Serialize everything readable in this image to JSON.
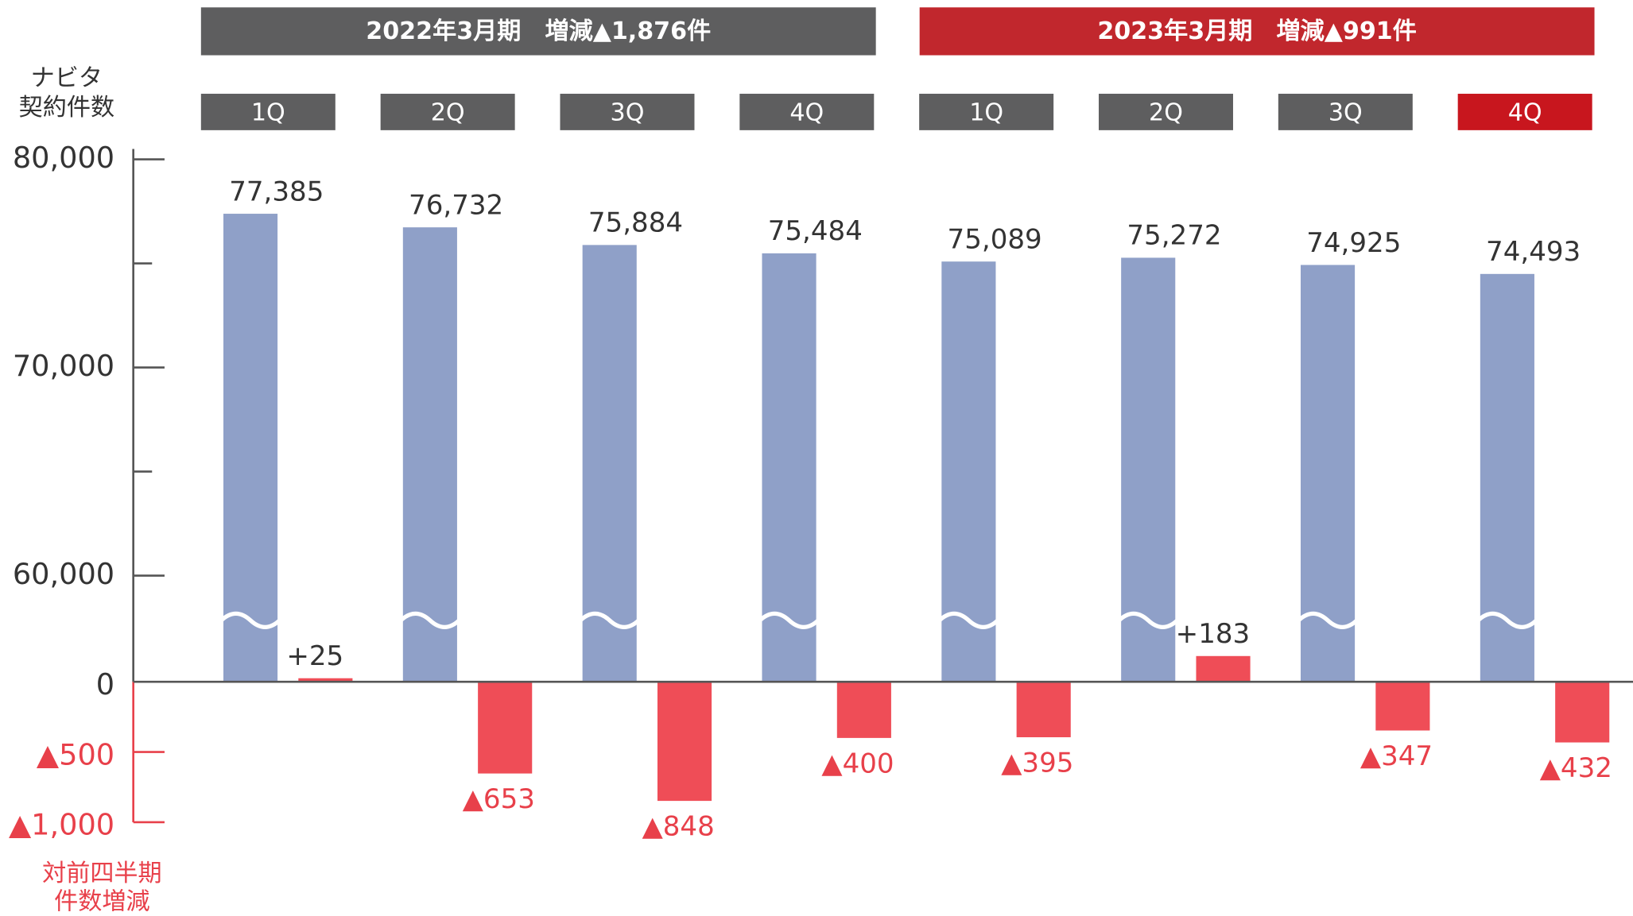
{
  "chart_data": {
    "type": "bar",
    "periods": [
      {
        "label": "2022年3月期　増減▲1,876件",
        "color": "#5e5e5f"
      },
      {
        "label": "2023年3月期　増減▲991件",
        "color": "#c1272d"
      }
    ],
    "categories": [
      "1Q",
      "2Q",
      "3Q",
      "4Q",
      "1Q",
      "2Q",
      "3Q",
      "4Q"
    ],
    "category_colors": [
      "#5e5e5f",
      "#5e5e5f",
      "#5e5e5f",
      "#5e5e5f",
      "#5e5e5f",
      "#5e5e5f",
      "#5e5e5f",
      "#c8161e"
    ],
    "ylabel": [
      "ナビタ",
      "契約件数"
    ],
    "y2label": [
      "対前四半期",
      "件数増減"
    ],
    "series": [
      {
        "color": "#8fa0c8",
        "values": [
          77385,
          76732,
          75884,
          75484,
          75089,
          75272,
          74925,
          74493
        ],
        "value_labels": [
          "77,385",
          "76,732",
          "75,884",
          "75,484",
          "75,089",
          "75,272",
          "74,925",
          "74,493"
        ]
      },
      {
        "color": "#ef4d57",
        "axis": "y2",
        "values": [
          25,
          -653,
          -848,
          -400,
          -395,
          183,
          -347,
          -432
        ],
        "value_labels": [
          "+25",
          "▲653",
          "▲848",
          "▲400",
          "▲395",
          "+183",
          "▲347",
          "▲432"
        ]
      }
    ],
    "ylim": [
      60000,
      80000
    ],
    "yticks": [
      {
        "value": 80000,
        "label": "80,000"
      },
      {
        "value": 70000,
        "label": "70,000"
      },
      {
        "value": 60000,
        "label": "60,000"
      }
    ],
    "yticks_minor": [
      75000,
      65000
    ],
    "y2lim": [
      -1000,
      0
    ],
    "y2ticks": [
      0,
      {
        "value": -500,
        "label": "▲500"
      },
      {
        "value": -1000,
        "label": "▲1,000"
      }
    ]
  }
}
